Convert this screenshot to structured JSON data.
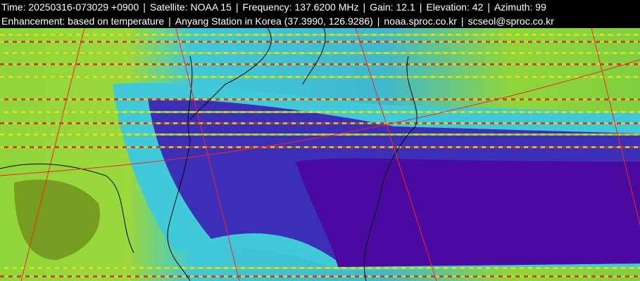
{
  "header": {
    "line1": {
      "time": "Time: 20250316-073029 +0900",
      "satellite": "Satellite: NOAA 15",
      "frequency": "Frequency: 137.6200 MHz",
      "gain": "Gain: 12.1",
      "elevation": "Elevation: 42",
      "azimuth": "Azimuth: 99"
    },
    "line2": {
      "enhancement": "Enhancement: based on temperature",
      "station": "Anyang Station in Korea (37.3990, 126.9286)",
      "website": "noaa.sproc.co.kr",
      "email": "scseol@sproc.co.kr"
    },
    "separator": "|"
  },
  "image": {
    "type": "NOAA APT satellite image, temperature enhanced",
    "colors": {
      "land_warm": "#8fd63a",
      "land_dark": "#6f8f1a",
      "cloud_mid": "#3fc9d9",
      "cloud_cold": "#3b2fb8",
      "cloud_coldest": "#4a0aa0",
      "grid": "#ff2020",
      "coast": "#000000"
    }
  }
}
